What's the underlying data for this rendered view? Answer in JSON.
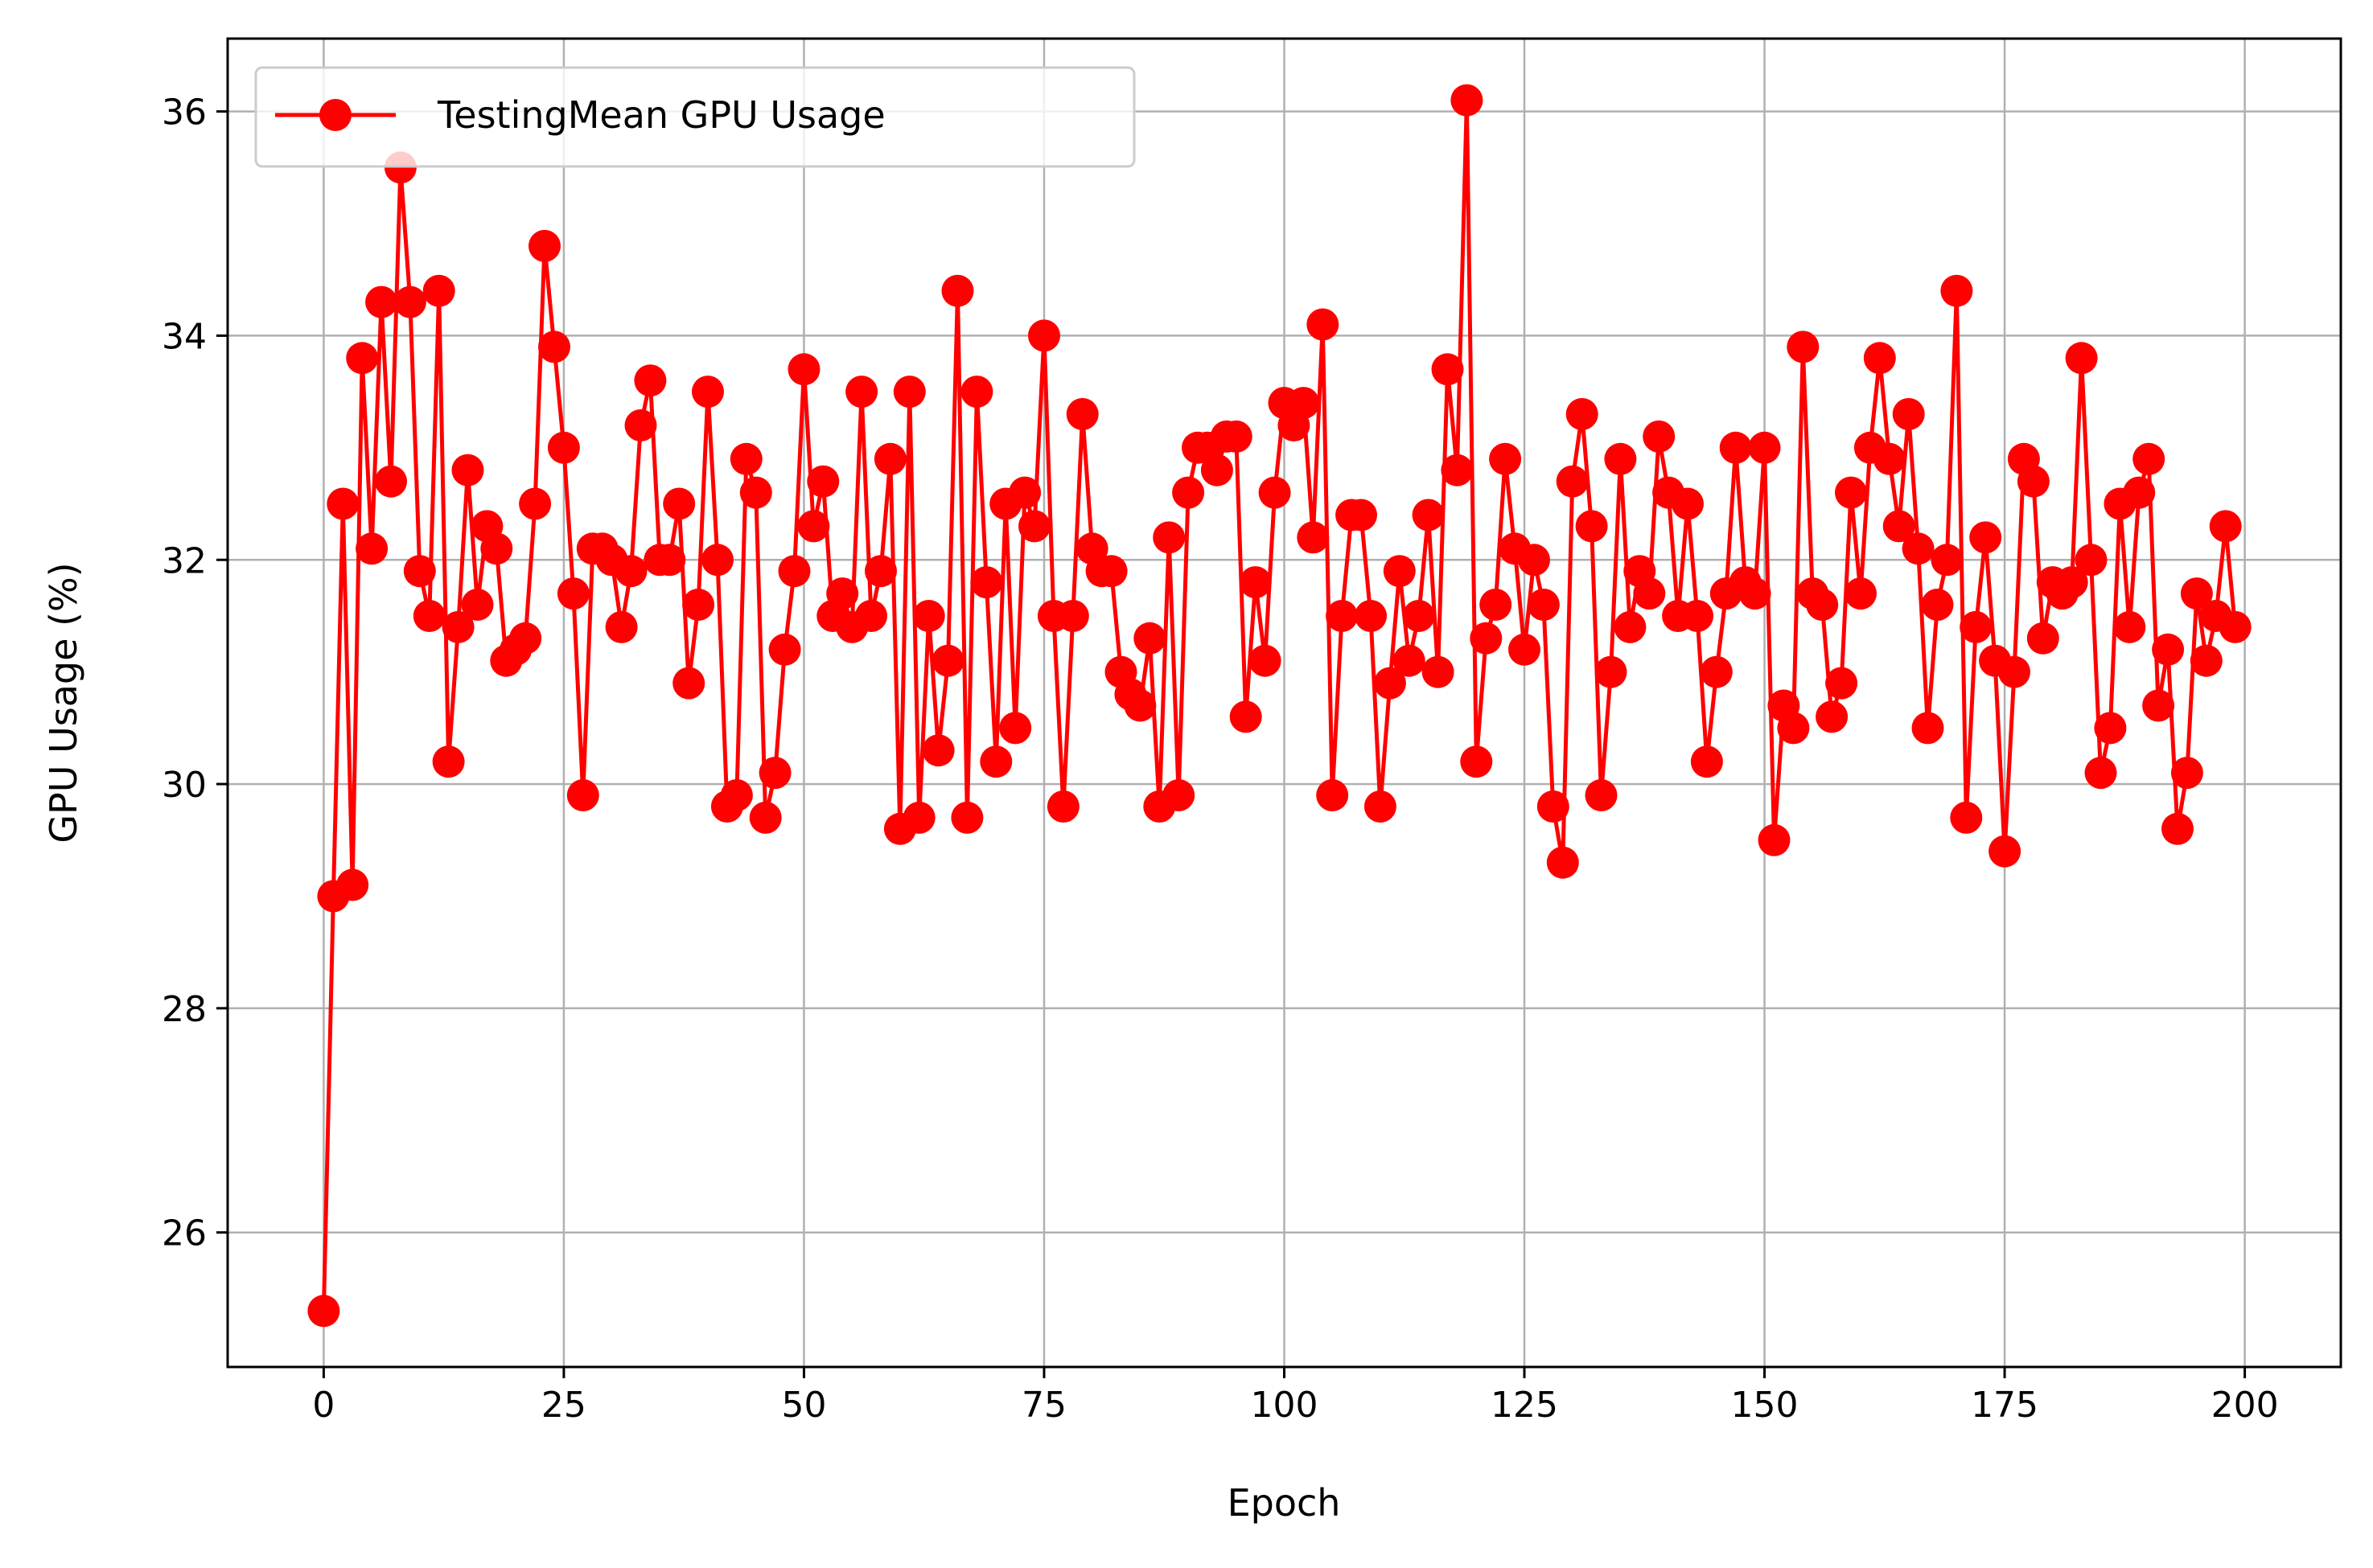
{
  "chart_data": {
    "type": "line",
    "xlabel": "Epoch",
    "ylabel": "GPU Usage (%)",
    "xlim": [
      -10,
      210
    ],
    "ylim": [
      24.8,
      36.65
    ],
    "xticks": [
      0,
      25,
      50,
      75,
      100,
      125,
      150,
      175,
      200
    ],
    "yticks": [
      26,
      28,
      30,
      32,
      34,
      36
    ],
    "grid": true,
    "legend_position": "top-left",
    "series": [
      {
        "name": "TestingMean GPU Usage",
        "color": "#ff0000",
        "marker": "circle",
        "x_start": 0,
        "x_step": 1,
        "values": [
          25.3,
          29.0,
          32.5,
          29.1,
          33.8,
          32.1,
          34.3,
          32.7,
          35.5,
          34.3,
          31.9,
          31.5,
          34.4,
          30.2,
          31.4,
          32.8,
          31.6,
          32.3,
          32.1,
          31.1,
          31.2,
          31.3,
          32.5,
          34.8,
          33.9,
          33.0,
          31.7,
          29.9,
          32.1,
          32.1,
          32.0,
          31.4,
          31.9,
          33.2,
          33.6,
          32.0,
          32.0,
          32.5,
          30.9,
          31.6,
          33.5,
          32.0,
          29.8,
          29.9,
          32.9,
          32.6,
          29.7,
          30.1,
          31.2,
          31.9,
          33.7,
          32.3,
          32.7,
          31.5,
          31.7,
          31.4,
          33.5,
          31.5,
          31.9,
          32.9,
          29.6,
          33.5,
          29.7,
          31.5,
          30.3,
          31.1,
          34.4,
          29.7,
          33.5,
          31.8,
          30.2,
          32.5,
          30.5,
          32.6,
          32.3,
          34.0,
          31.5,
          29.8,
          31.5,
          33.3,
          32.1,
          31.9,
          31.9,
          31.0,
          30.8,
          30.7,
          31.3,
          29.8,
          32.2,
          29.9,
          32.6,
          33.0,
          33.0,
          32.8,
          33.1,
          33.1,
          30.6,
          31.8,
          31.1,
          32.6,
          33.4,
          33.2,
          33.4,
          32.2,
          34.1,
          29.9,
          31.5,
          32.4,
          32.4,
          31.5,
          29.8,
          30.9,
          31.9,
          31.1,
          31.5,
          32.4,
          31.0,
          33.7,
          32.8,
          36.1,
          30.2,
          31.3,
          31.6,
          32.9,
          32.1,
          31.2,
          32.0,
          31.6,
          29.8,
          29.3,
          32.7,
          33.3,
          32.3,
          29.9,
          31.0,
          32.9,
          31.4,
          31.9,
          31.7,
          33.1,
          32.6,
          31.5,
          32.5,
          31.5,
          30.2,
          31.0,
          31.7,
          33.0,
          31.8,
          31.7,
          33.0,
          29.5,
          30.7,
          30.5,
          33.9,
          31.7,
          31.6,
          30.6,
          30.9,
          32.6,
          31.7,
          33.0,
          33.8,
          32.9,
          32.3,
          33.3,
          32.1,
          30.5,
          31.6,
          32.0,
          34.4,
          29.7,
          31.4,
          32.2,
          31.1,
          29.4,
          31.0,
          32.9,
          32.7,
          31.3,
          31.8,
          31.7,
          31.8,
          33.8,
          32.0,
          30.1,
          30.5,
          32.5,
          31.4,
          32.6,
          32.9,
          30.7,
          31.2,
          29.6,
          30.1,
          31.7,
          31.1,
          31.5,
          32.3,
          31.4
        ]
      }
    ]
  }
}
